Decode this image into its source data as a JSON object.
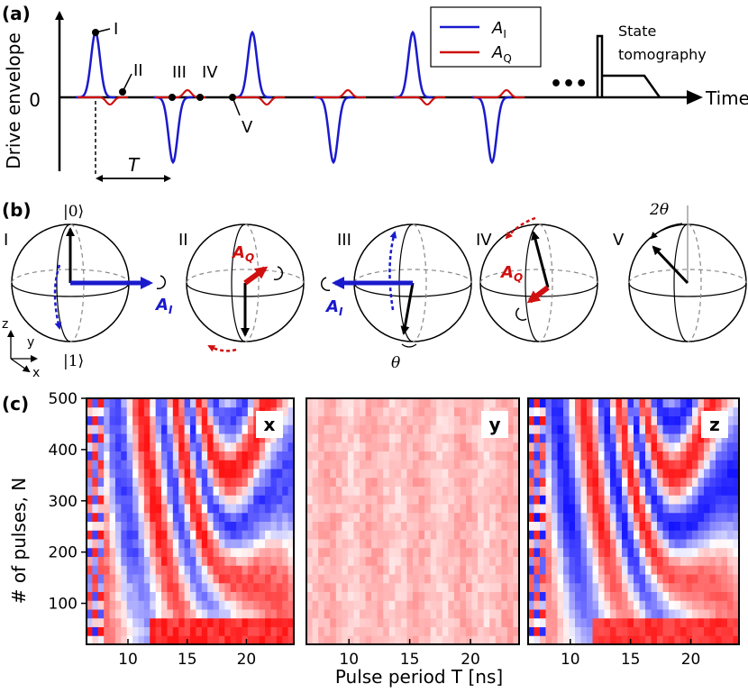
{
  "panel_a": {
    "label": "(a)",
    "ylabel": "Drive envelope",
    "zero_label": "0",
    "xlabel": "Time",
    "period_label": "T",
    "legend": {
      "ai": "A",
      "ai_sub": "I",
      "aq": "A",
      "aq_sub": "Q"
    },
    "colors": {
      "ai": "#1a1acc",
      "aq": "#d01010"
    },
    "markers": [
      "I",
      "II",
      "III",
      "IV",
      "V"
    ],
    "ellipsis": "•••",
    "tomography_line1": "State",
    "tomography_line2": "tomography"
  },
  "panel_b": {
    "label": "(b)",
    "spheres": [
      "I",
      "II",
      "III",
      "IV",
      "V"
    ],
    "ket0": "|0⟩",
    "ket1": "|1⟩",
    "ai": "A",
    "ai_sub": "I",
    "aq": "A",
    "aq_sub": "Q",
    "theta": "θ",
    "two_theta": "2θ",
    "axes": {
      "z": "z",
      "y": "y",
      "x": "x"
    }
  },
  "panel_c": {
    "label": "(c)",
    "ylabel": "# of pulses, N",
    "xlabel": "Pulse period T [ns]",
    "yticks": [
      "100",
      "200",
      "300",
      "400",
      "500"
    ],
    "xticks": [
      "10",
      "15",
      "20"
    ],
    "maps": [
      "x",
      "y",
      "z"
    ]
  },
  "chart_data": [
    {
      "type": "heatmap",
      "title": "x",
      "xlabel": "Pulse period T [ns]",
      "ylabel": "# of pulses, N",
      "xlim": [
        6.5,
        24
      ],
      "ylim": [
        20,
        500
      ],
      "xticks": [
        10,
        15,
        20
      ],
      "yticks": [
        100,
        200,
        300,
        400,
        500
      ],
      "colormap": "blue-white-red"
    },
    {
      "type": "heatmap",
      "title": "y",
      "xlabel": "Pulse period T [ns]",
      "xlim": [
        6.5,
        24
      ],
      "ylim": [
        20,
        500
      ],
      "xticks": [
        10,
        15,
        20
      ],
      "colormap": "blue-white-red"
    },
    {
      "type": "heatmap",
      "title": "z",
      "xlabel": "Pulse period T [ns]",
      "xlim": [
        6.5,
        24
      ],
      "ylim": [
        20,
        500
      ],
      "xticks": [
        10,
        15,
        20
      ],
      "colormap": "blue-white-red"
    }
  ]
}
